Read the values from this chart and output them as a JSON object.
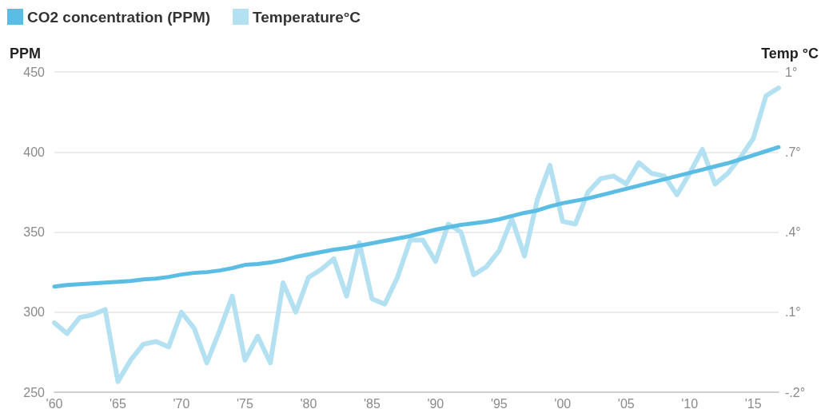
{
  "chart_data": {
    "type": "line",
    "x": [
      1960,
      1961,
      1962,
      1963,
      1964,
      1965,
      1966,
      1967,
      1968,
      1969,
      1970,
      1971,
      1972,
      1973,
      1974,
      1975,
      1976,
      1977,
      1978,
      1979,
      1980,
      1981,
      1982,
      1983,
      1984,
      1985,
      1986,
      1987,
      1988,
      1989,
      1990,
      1991,
      1992,
      1993,
      1994,
      1995,
      1996,
      1997,
      1998,
      1999,
      2000,
      2001,
      2002,
      2003,
      2004,
      2005,
      2006,
      2007,
      2008,
      2009,
      2010,
      2011,
      2012,
      2013,
      2014,
      2015,
      2016,
      2017
    ],
    "xlim": [
      1960,
      2017
    ],
    "xticks": [
      {
        "value": 1960,
        "label": "'60"
      },
      {
        "value": 1965,
        "label": "'65"
      },
      {
        "value": 1970,
        "label": "'70"
      },
      {
        "value": 1975,
        "label": "'75"
      },
      {
        "value": 1980,
        "label": "'80"
      },
      {
        "value": 1985,
        "label": "'85"
      },
      {
        "value": 1990,
        "label": "'90"
      },
      {
        "value": 1995,
        "label": "'95"
      },
      {
        "value": 2000,
        "label": "'00"
      },
      {
        "value": 2005,
        "label": "'05"
      },
      {
        "value": 2010,
        "label": "'10"
      },
      {
        "value": 2015,
        "label": "'15"
      }
    ],
    "ylabel": "PPM",
    "y2label": "Temp °C",
    "ylim": [
      250,
      450
    ],
    "yticks": [
      250,
      300,
      350,
      400,
      450
    ],
    "y2lim": [
      -0.2,
      1
    ],
    "y2ticks": [
      {
        "value": -0.2,
        "label": "-.2°"
      },
      {
        "value": 0.1,
        "label": ".1°"
      },
      {
        "value": 0.4,
        "label": ".4°"
      },
      {
        "value": 0.7,
        "label": ".7°"
      },
      {
        "value": 1,
        "label": "1°"
      }
    ],
    "series": [
      {
        "name": "CO2 concentration (PPM)",
        "color": "#5bbde4",
        "values": [
          316,
          317,
          317.5,
          318,
          318.5,
          319,
          319.5,
          320.5,
          321,
          322,
          323.5,
          324.5,
          325,
          326,
          327.5,
          329.5,
          330,
          331,
          332.5,
          334.5,
          336,
          337.5,
          339,
          340,
          341.5,
          343,
          344.5,
          346,
          347.5,
          349.5,
          351.5,
          353,
          354.5,
          355.5,
          356.5,
          358,
          360,
          362,
          363.5,
          366,
          368,
          369.5,
          371,
          373,
          375,
          377,
          379,
          381,
          383,
          385,
          387,
          389,
          391,
          393,
          395.5,
          398,
          400.5,
          403
        ]
      },
      {
        "name": "Temperature°C",
        "color": "#b3e1f2",
        "axis": "y2",
        "values": [
          0.06,
          0.02,
          0.08,
          0.09,
          0.11,
          -0.16,
          -0.08,
          -0.02,
          -0.01,
          -0.03,
          0.1,
          0.04,
          -0.09,
          0.03,
          0.16,
          -0.08,
          0.01,
          -0.09,
          0.21,
          0.1,
          0.23,
          0.26,
          0.3,
          0.16,
          0.36,
          0.15,
          0.13,
          0.23,
          0.37,
          0.37,
          0.29,
          0.43,
          0.4,
          0.24,
          0.27,
          0.33,
          0.45,
          0.31,
          0.52,
          0.65,
          0.44,
          0.43,
          0.55,
          0.6,
          0.61,
          0.58,
          0.66,
          0.62,
          0.61,
          0.54,
          0.62,
          0.71,
          0.58,
          0.62,
          0.68,
          0.75,
          0.91,
          0.94
        ]
      }
    ],
    "grid": "y",
    "legend": "top left",
    "marker": "none",
    "line_style": "solid"
  }
}
